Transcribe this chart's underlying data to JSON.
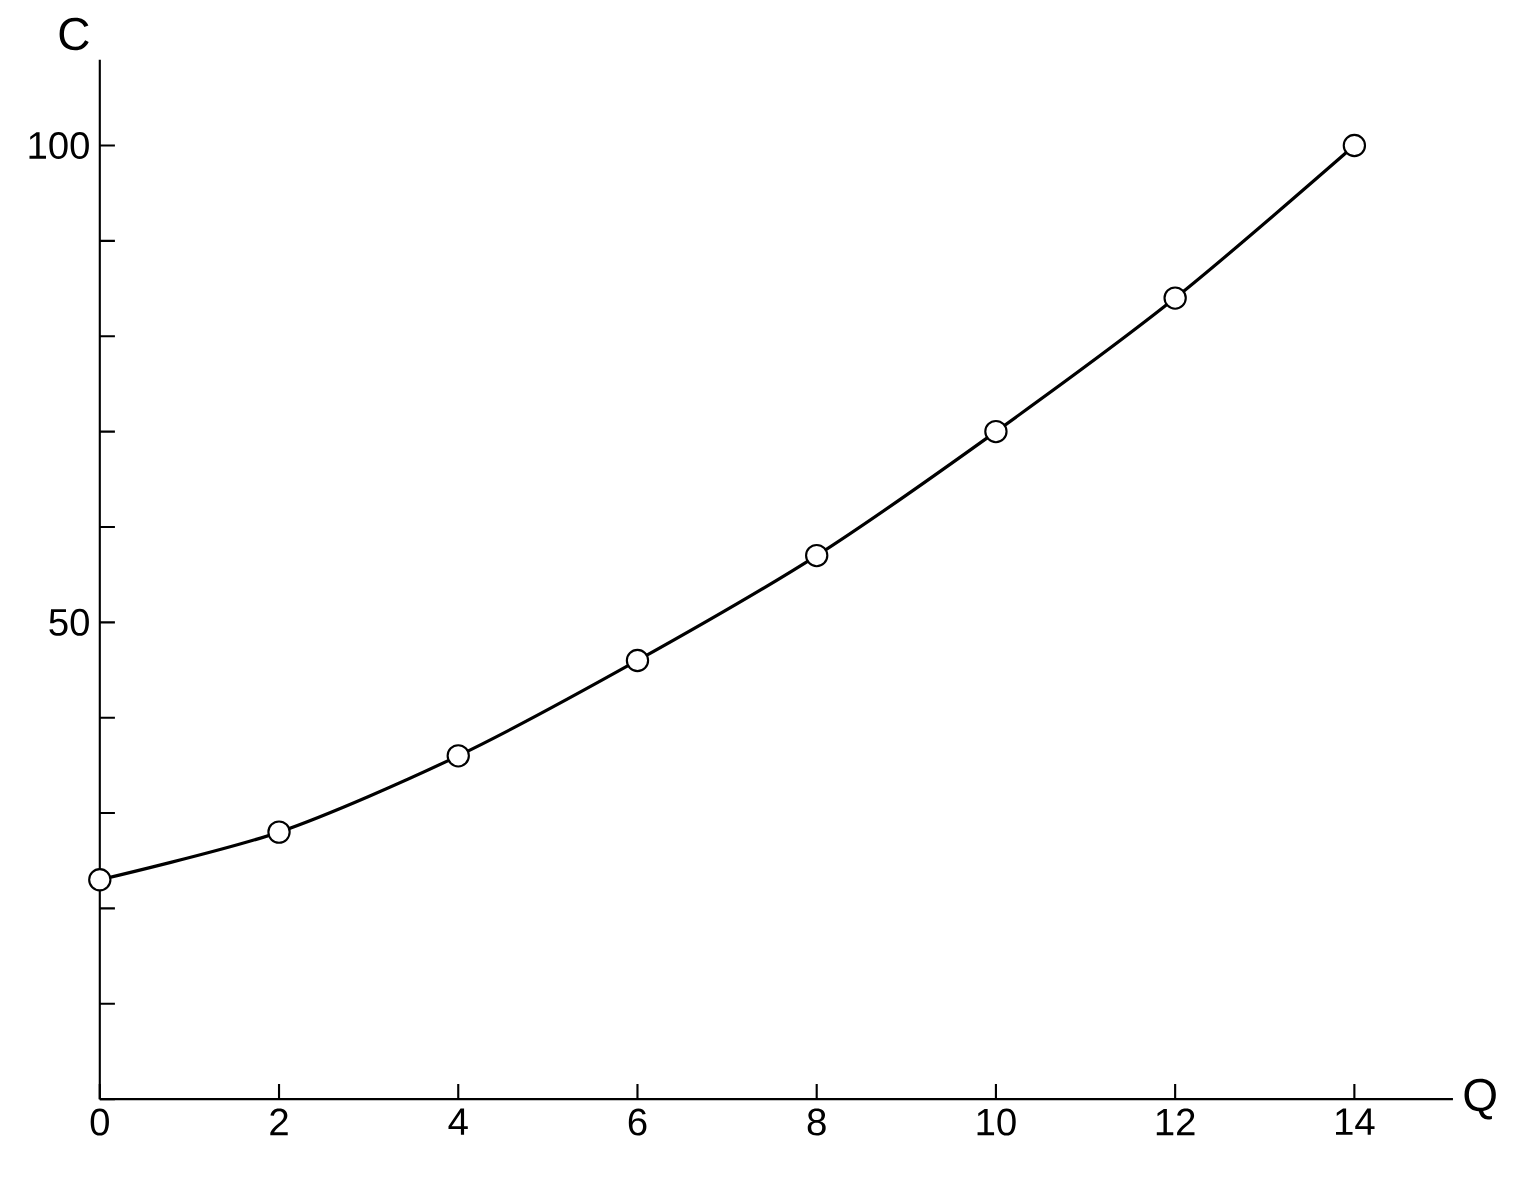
{
  "chart_data": {
    "type": "line",
    "xlabel": "Q",
    "ylabel": "C",
    "x": [
      0,
      2,
      4,
      6,
      8,
      10,
      12,
      14
    ],
    "series": [
      {
        "color": "#000000",
        "values": [
          23,
          28,
          36,
          46,
          57,
          70,
          84,
          100
        ]
      }
    ],
    "xlim": [
      0,
      15.1
    ],
    "ylim": [
      0,
      109
    ],
    "xticks": [
      0,
      2,
      4,
      6,
      8,
      10,
      12,
      14
    ],
    "yticks": [
      {
        "value": 0,
        "label": null
      },
      {
        "value": 10,
        "label": null
      },
      {
        "value": 20,
        "label": null
      },
      {
        "value": 30,
        "label": null
      },
      {
        "value": 40,
        "label": null
      },
      50,
      {
        "value": 60,
        "label": null
      },
      {
        "value": 70,
        "label": null
      },
      {
        "value": 80,
        "label": null
      },
      {
        "value": 90,
        "label": null
      },
      100
    ],
    "marker": "circle",
    "line_style": "solid",
    "grid": false
  }
}
